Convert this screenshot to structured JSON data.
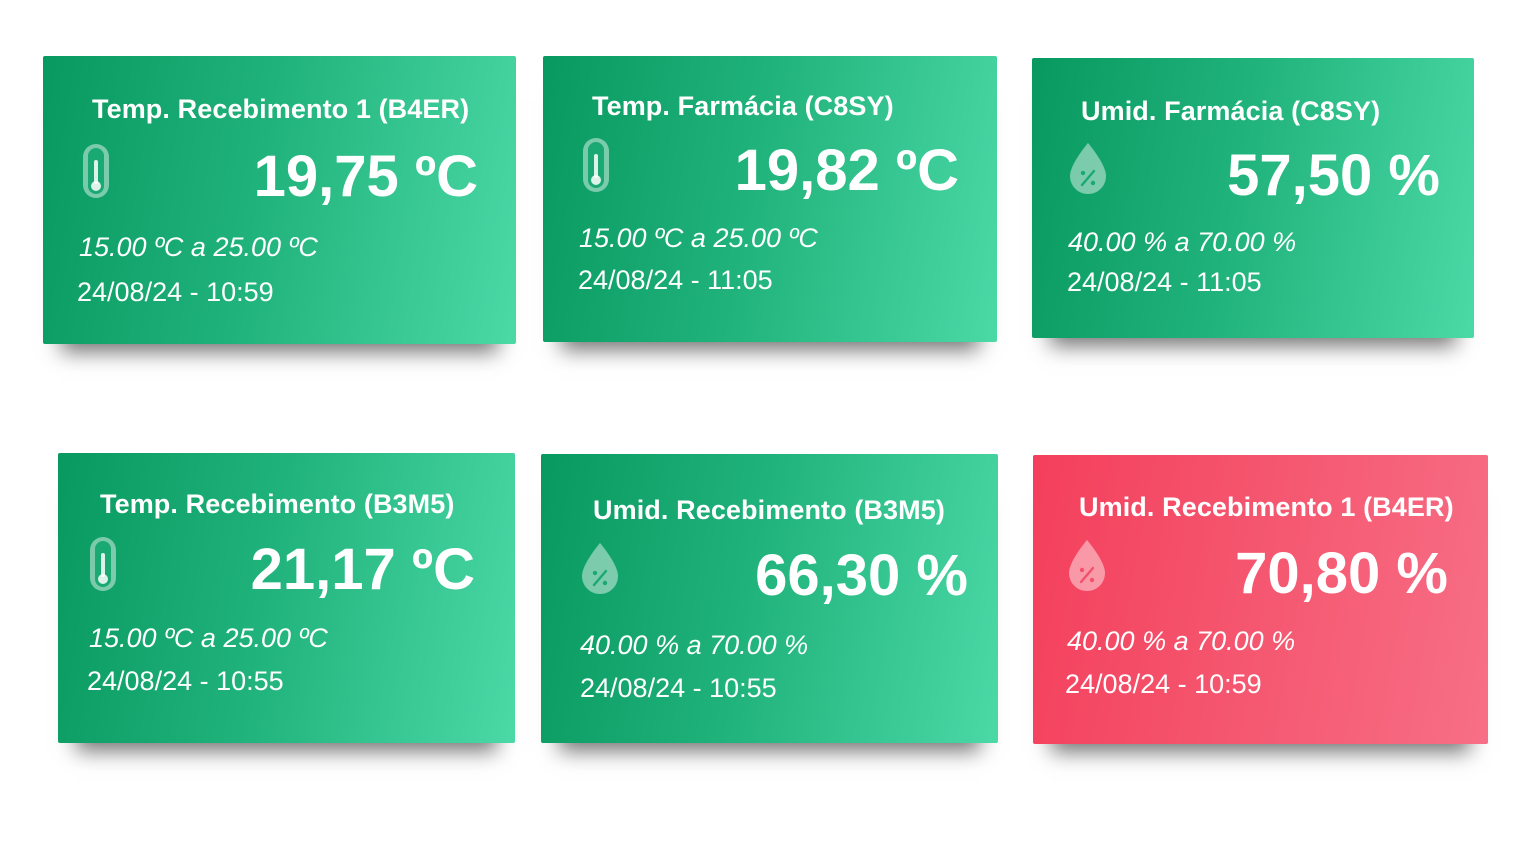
{
  "sensors": [
    {
      "title": "Temp. Recebimento 1 (B4ER)",
      "value": "19,75 ºC",
      "range": "15.00 ºC a 25.00 ºC",
      "timestamp": "24/08/24 - 10:59",
      "icon": "thermometer-icon",
      "status": "ok"
    },
    {
      "title": "Temp. Farmácia (C8SY)",
      "value": "19,82 ºC",
      "range": "15.00 ºC a 25.00 ºC",
      "timestamp": "24/08/24 - 11:05",
      "icon": "thermometer-icon",
      "status": "ok"
    },
    {
      "title": "Umid. Farmácia (C8SY)",
      "value": "57,50 %",
      "range": "40.00 % a 70.00 %",
      "timestamp": "24/08/24 - 11:05",
      "icon": "humidity-drop-icon",
      "status": "ok"
    },
    {
      "title": "Temp. Recebimento (B3M5)",
      "value": "21,17 ºC",
      "range": "15.00 ºC a 25.00 ºC",
      "timestamp": "24/08/24 - 10:55",
      "icon": "thermometer-icon",
      "status": "ok"
    },
    {
      "title": "Umid. Recebimento (B3M5)",
      "value": "66,30 %",
      "range": "40.00 % a 70.00 %",
      "timestamp": "24/08/24 - 10:55",
      "icon": "humidity-drop-icon",
      "status": "ok"
    },
    {
      "title": "Umid. Recebimento 1 (B4ER)",
      "value": "70,80 %",
      "range": "40.00 % a 70.00 %",
      "timestamp": "24/08/24 - 10:59",
      "icon": "humidity-drop-icon",
      "status": "alert"
    }
  ],
  "colors": {
    "ok_start": "#07995f",
    "ok_end": "#4bd9a6",
    "alert_start": "#f43f5c",
    "alert_end": "#f76f86"
  }
}
